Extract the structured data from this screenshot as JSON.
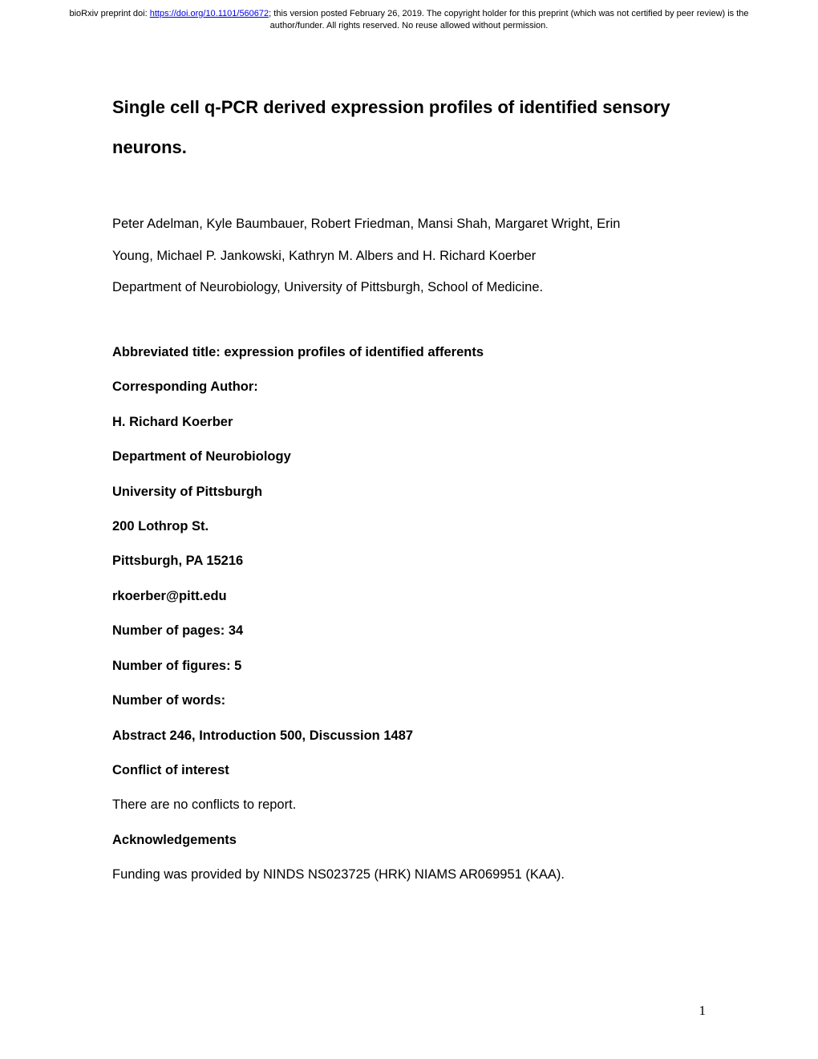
{
  "header": {
    "prefix": "bioRxiv preprint doi: ",
    "doi_url": "https://doi.org/10.1101/560672",
    "suffix": "; this version posted February 26, 2019. The copyright holder for this preprint (which was not certified by peer review) is the author/funder. All rights reserved. No reuse allowed without permission."
  },
  "title": "Single cell q-PCR derived expression profiles of identified sensory neurons.",
  "authors_line1": "Peter Adelman, Kyle Baumbauer, Robert Friedman, Mansi Shah, Margaret Wright, Erin",
  "authors_line2": "Young, Michael P. Jankowski, Kathryn M. Albers and H. Richard Koerber",
  "affiliation": "Department of Neurobiology, University of Pittsburgh, School of Medicine.",
  "meta": {
    "abbreviated_title": "Abbreviated title: expression profiles of identified afferents",
    "corresponding_label": "Corresponding Author:",
    "corresponding_name": "H. Richard Koerber",
    "department": "Department of Neurobiology",
    "university": "University of Pittsburgh",
    "address": "200 Lothrop St.",
    "city_state": "Pittsburgh, PA 15216",
    "email": "rkoerber@pitt.edu",
    "pages": "Number of pages: 34",
    "figures": "Number of figures: 5",
    "words_label": "Number of words:",
    "words_detail": "Abstract 246, Introduction 500, Discussion 1487",
    "conflict_label": "Conflict of interest",
    "conflict_text": "There are no conflicts to report.",
    "ack_label": "Acknowledgements",
    "ack_text": "Funding was provided by NINDS NS023725 (HRK) NIAMS AR069951 (KAA)."
  },
  "page_number": "1"
}
